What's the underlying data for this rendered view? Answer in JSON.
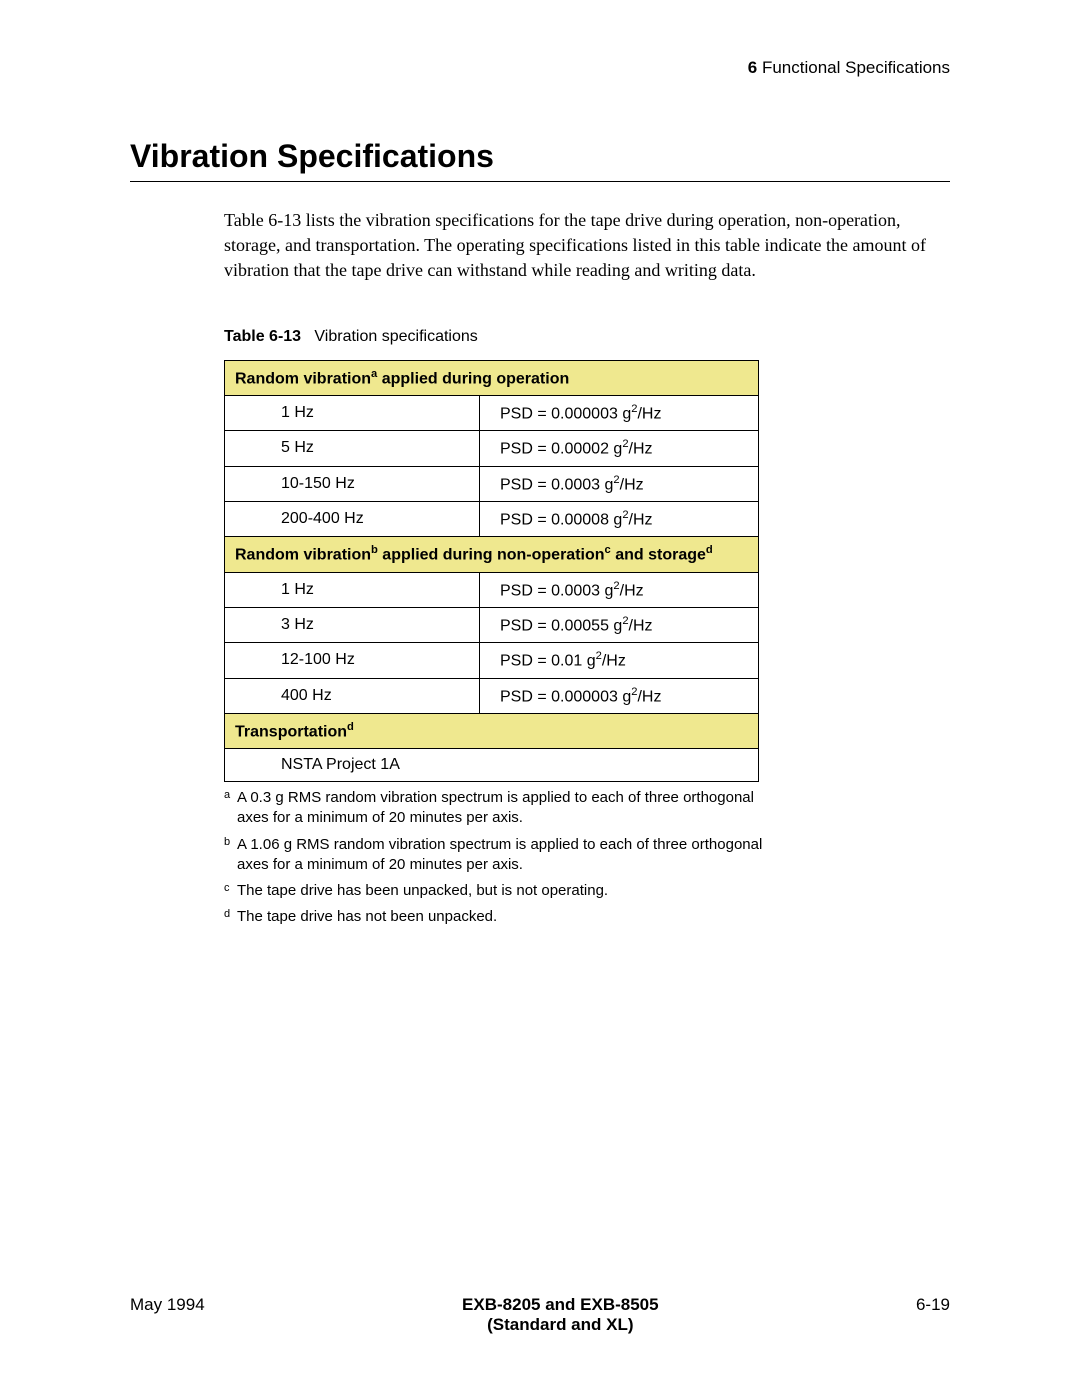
{
  "header": {
    "chapter_number": "6",
    "chapter_title": "Functional Specifications"
  },
  "section_title": "Vibration Specifications",
  "body_paragraph": "Table 6-13 lists the vibration specifications for the tape drive during operation, non-operation, storage, and transportation. The operating specifications listed in this table indicate the amount of vibration that the tape drive can withstand while reading and writing data.",
  "table": {
    "label": "Table 6-13",
    "caption": "Vibration specifications",
    "header_bg": "#efe88f",
    "border_color": "#000000",
    "sections": [
      {
        "title_pre": "Random vibration",
        "title_sup1": "a",
        "title_post": " applied during operation",
        "rows": [
          {
            "freq": "1 Hz",
            "psd_prefix": "PSD = 0.000003 g",
            "psd_unit": "/Hz"
          },
          {
            "freq": "5 Hz",
            "psd_prefix": "PSD = 0.00002 g",
            "psd_unit": "/Hz"
          },
          {
            "freq": "10-150 Hz",
            "psd_prefix": "PSD = 0.0003 g",
            "psd_unit": "/Hz"
          },
          {
            "freq": "200-400 Hz",
            "psd_prefix": "PSD = 0.00008 g",
            "psd_unit": "/Hz"
          }
        ]
      },
      {
        "title_pre": "Random vibration",
        "title_sup1": "b",
        "title_mid1": " applied during non-operation",
        "title_sup2": "c",
        "title_mid2": " and storage",
        "title_sup3": "d",
        "rows": [
          {
            "freq": "1 Hz",
            "psd_prefix": "PSD = 0.0003 g",
            "psd_unit": "/Hz"
          },
          {
            "freq": "3 Hz",
            "psd_prefix": "PSD = 0.00055 g",
            "psd_unit": "/Hz"
          },
          {
            "freq": "12-100 Hz",
            "psd_prefix": "PSD = 0.01 g",
            "psd_unit": "/Hz"
          },
          {
            "freq": "400 Hz",
            "psd_prefix": "PSD = 0.000003 g",
            "psd_unit": "/Hz"
          }
        ]
      },
      {
        "title_pre": "Transportation",
        "title_sup1": "d",
        "single_row": "NSTA Project 1A"
      }
    ]
  },
  "footnotes": [
    {
      "marker": "a",
      "text": "A 0.3 g RMS random vibration spectrum is applied to each of three orthogonal axes for a minimum of 20 minutes per axis."
    },
    {
      "marker": "b",
      "text": "A 1.06 g RMS random vibration spectrum is applied to each of three orthogonal axes for a minimum of 20 minutes per axis."
    },
    {
      "marker": "c",
      "text": "The tape drive has been unpacked, but is not operating."
    },
    {
      "marker": "d",
      "text": "The tape drive has not been unpacked."
    }
  ],
  "footer": {
    "left": "May 1994",
    "center_line1": "EXB-8205 and EXB-8505",
    "center_line2": "(Standard and XL)",
    "right": "6-19"
  },
  "psd_exponent": "2"
}
